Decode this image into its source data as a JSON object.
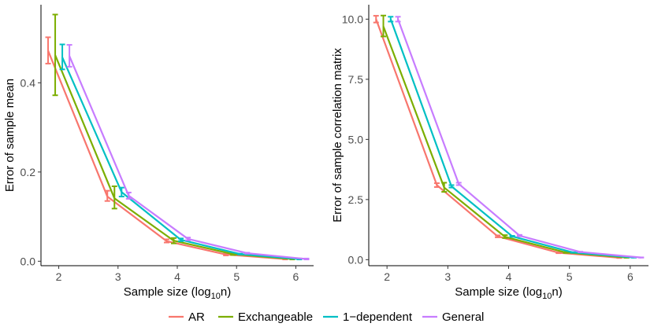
{
  "chart_data": [
    {
      "type": "line",
      "xlabel": "Sample size (log",
      "xlabel_sub": "10",
      "xlabel_end": "n)",
      "ylabel": "Error of sample mean",
      "xlim": [
        1.7,
        6.3
      ],
      "ylim": [
        -0.01,
        0.575
      ],
      "xticks": [
        2,
        3,
        4,
        5,
        6
      ],
      "xtick_labels": [
        "2",
        "3",
        "4",
        "5",
        "6"
      ],
      "yticks": [
        0,
        0.2,
        0.4
      ],
      "ytick_labels": [
        "0.0",
        "0.2",
        "0.4"
      ],
      "series": [
        {
          "name": "AR",
          "x": [
            1.82,
            2.82,
            3.82,
            4.82,
            5.82
          ],
          "y": [
            0.472,
            0.145,
            0.045,
            0.015,
            0.005
          ],
          "err_low": [
            0.443,
            0.135,
            0.042,
            0.013,
            0.004
          ],
          "err_high": [
            0.502,
            0.158,
            0.049,
            0.017,
            0.006
          ]
        },
        {
          "name": "Exchangeable",
          "x": [
            1.94,
            2.94,
            3.94,
            4.94,
            5.94
          ],
          "y": [
            0.462,
            0.141,
            0.046,
            0.016,
            0.005
          ],
          "err_low": [
            0.372,
            0.118,
            0.04,
            0.014,
            0.004
          ],
          "err_high": [
            0.553,
            0.168,
            0.052,
            0.018,
            0.006
          ]
        },
        {
          "name": "1−dependent",
          "x": [
            2.06,
            3.06,
            4.06,
            5.06,
            6.06
          ],
          "y": [
            0.457,
            0.155,
            0.048,
            0.016,
            0.005
          ],
          "err_low": [
            0.43,
            0.145,
            0.045,
            0.015,
            0.004
          ],
          "err_high": [
            0.486,
            0.165,
            0.051,
            0.017,
            0.006
          ]
        },
        {
          "name": "General",
          "x": [
            2.18,
            3.18,
            4.18,
            5.18,
            6.18
          ],
          "y": [
            0.46,
            0.147,
            0.05,
            0.018,
            0.005
          ],
          "err_low": [
            0.436,
            0.14,
            0.047,
            0.017,
            0.004
          ],
          "err_high": [
            0.485,
            0.154,
            0.053,
            0.019,
            0.006
          ]
        }
      ]
    },
    {
      "type": "line",
      "xlabel": "Sample size (log",
      "xlabel_sub": "10",
      "xlabel_end": "n)",
      "ylabel": "Error of sample correlation matrix",
      "xlim": [
        1.7,
        6.3
      ],
      "ylim": [
        -0.25,
        10.6
      ],
      "xticks": [
        2,
        3,
        4,
        5,
        6
      ],
      "xtick_labels": [
        "2",
        "3",
        "4",
        "5",
        "6"
      ],
      "yticks": [
        0,
        2.5,
        5,
        7.5,
        10
      ],
      "ytick_labels": [
        "0.0",
        "2.5",
        "5.0",
        "7.5",
        "10.0"
      ],
      "series": [
        {
          "name": "AR",
          "x": [
            1.82,
            2.82,
            3.82,
            4.82,
            5.82
          ],
          "y": [
            10.0,
            3.1,
            0.97,
            0.29,
            0.08
          ],
          "err_low": [
            9.86,
            3.02,
            0.93,
            0.27,
            0.07
          ],
          "err_high": [
            10.14,
            3.18,
            1.01,
            0.31,
            0.09
          ]
        },
        {
          "name": "Exchangeable",
          "x": [
            1.94,
            2.94,
            3.94,
            4.94,
            5.94
          ],
          "y": [
            9.7,
            3.0,
            0.95,
            0.3,
            0.09
          ],
          "err_low": [
            9.28,
            2.82,
            0.9,
            0.28,
            0.08
          ],
          "err_high": [
            10.15,
            3.2,
            1.02,
            0.32,
            0.1
          ]
        },
        {
          "name": "1−dependent",
          "x": [
            2.06,
            3.06,
            4.06,
            5.06,
            6.06
          ],
          "y": [
            10.0,
            3.05,
            0.97,
            0.3,
            0.09
          ],
          "err_low": [
            9.9,
            3.0,
            0.95,
            0.29,
            0.085
          ],
          "err_high": [
            10.1,
            3.1,
            0.99,
            0.31,
            0.095
          ]
        },
        {
          "name": "General",
          "x": [
            2.18,
            3.18,
            4.18,
            5.18,
            6.18
          ],
          "y": [
            10.0,
            3.15,
            1.0,
            0.32,
            0.09
          ],
          "err_low": [
            9.9,
            3.1,
            0.97,
            0.31,
            0.085
          ],
          "err_high": [
            10.1,
            3.2,
            1.03,
            0.33,
            0.095
          ]
        }
      ]
    }
  ],
  "legend": {
    "position": "bottom",
    "items": [
      {
        "label": "AR",
        "color": "#F8766D"
      },
      {
        "label": "Exchangeable",
        "color": "#7CAE00"
      },
      {
        "label": "1−dependent",
        "color": "#00BFC4"
      },
      {
        "label": "General",
        "color": "#C77CFF"
      }
    ]
  }
}
